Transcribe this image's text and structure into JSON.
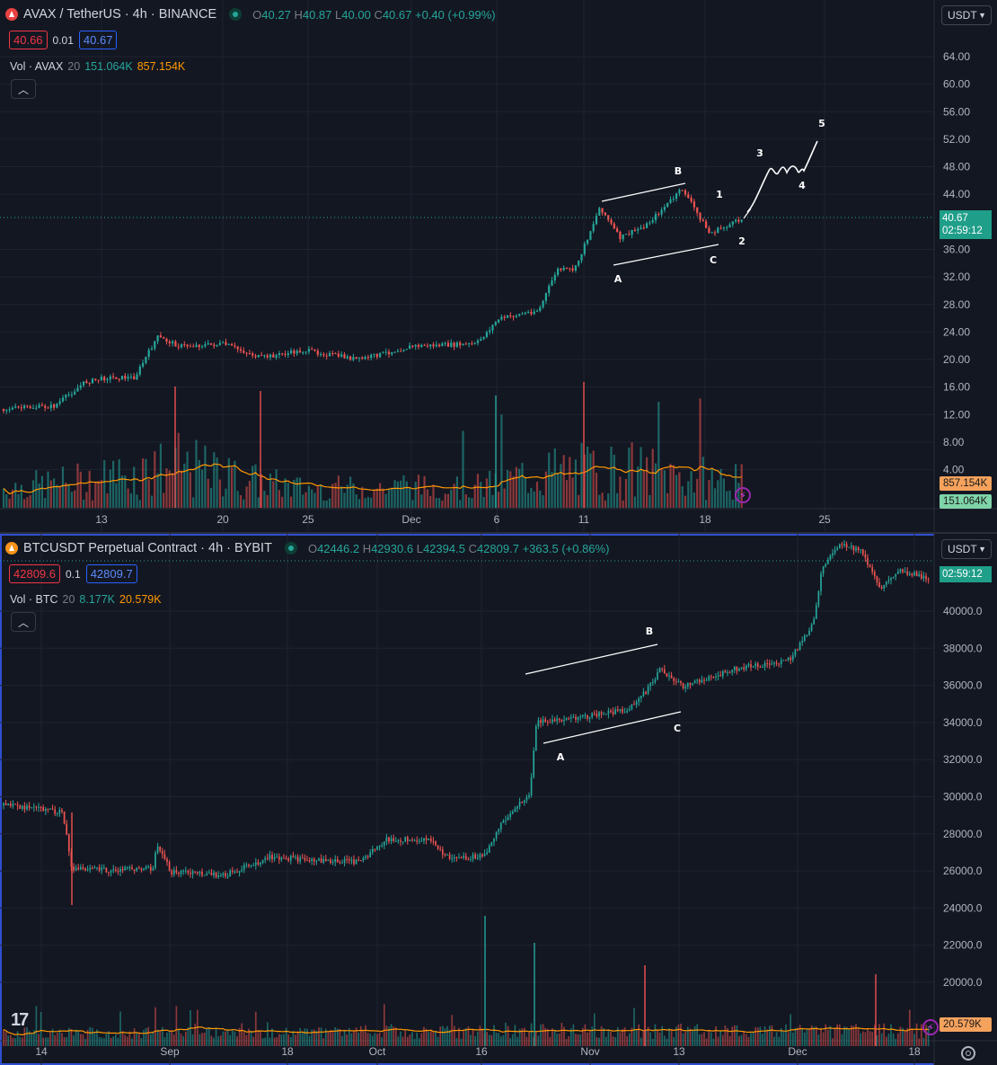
{
  "top": {
    "symbol": "AVAX / TetherUS · 4h · BINANCE",
    "ohlc": {
      "o_label": "O",
      "o": "40.27",
      "h_label": "H",
      "h": "40.87",
      "l_label": "L",
      "l": "40.00",
      "c_label": "C",
      "c": "40.67",
      "change": "+0.40 (+0.99%)"
    },
    "bid": "40.66",
    "spread": "0.01",
    "ask": "40.67",
    "volume": {
      "label": "Vol · AVAX",
      "period": "20",
      "value1": "151.064K",
      "value2": "857.154K"
    },
    "currency": "USDT",
    "price_tag": "40.67",
    "countdown": "02:59:12",
    "vol_ma_tag": "857.154K",
    "vol_tag": "151.064K",
    "price_axis": [
      "64.00",
      "60.00",
      "56.00",
      "52.00",
      "48.00",
      "44.00",
      "36.00",
      "32.00",
      "28.00",
      "24.00",
      "20.00",
      "16.00",
      "12.00",
      "8.00",
      "4.00"
    ],
    "time_axis": [
      "13",
      "20",
      "25",
      "Dec",
      "6",
      "11",
      "18",
      "25"
    ],
    "wave_labels": [
      "A",
      "B",
      "C",
      "1",
      "2",
      "3",
      "4",
      "5"
    ],
    "colors": {
      "up": "#26a69a",
      "down": "#ef5350",
      "ma": "#ff9800"
    },
    "chart_data": {
      "type": "candlestick",
      "approx_close": [
        {
          "x": "13",
          "y": 16.5
        },
        {
          "x": "20",
          "y": 23.0
        },
        {
          "x": "25",
          "y": 21.5
        },
        {
          "x": "Dec",
          "y": 21.0
        },
        {
          "x": "6",
          "y": 26.5
        },
        {
          "x": "11",
          "y": 37.0
        },
        {
          "x": "18",
          "y": 38.0
        }
      ],
      "last_price": 40.67,
      "volume_ma_period": 20
    }
  },
  "bottom": {
    "symbol": "BTCUSDT Perpetual Contract · 4h · BYBIT",
    "ohlc": {
      "o_label": "O",
      "o": "42446.2",
      "h_label": "H",
      "h": "42930.6",
      "l_label": "L",
      "l": "42394.5",
      "c_label": "C",
      "c": "42809.7",
      "change": "+363.5 (+0.86%)"
    },
    "bid": "42809.6",
    "spread": "0.1",
    "ask": "42809.7",
    "volume": {
      "label": "Vol · BTC",
      "period": "20",
      "value1": "8.177K",
      "value2": "20.579K"
    },
    "currency": "USDT",
    "countdown": "02:59:12",
    "vol_ma_tag": "20.579K",
    "price_axis": [
      "40000.0",
      "38000.0",
      "36000.0",
      "34000.0",
      "32000.0",
      "30000.0",
      "28000.0",
      "26000.0",
      "24000.0",
      "22000.0",
      "20000.0"
    ],
    "time_axis": [
      "14",
      "Sep",
      "18",
      "Oct",
      "16",
      "Nov",
      "13",
      "Dec",
      "18"
    ],
    "wave_labels": [
      "A",
      "B",
      "C"
    ],
    "logo": "17",
    "chart_data": {
      "type": "candlestick",
      "approx_close": [
        {
          "x": "14",
          "y": 29000
        },
        {
          "x": "Sep",
          "y": 25800
        },
        {
          "x": "18",
          "y": 26500
        },
        {
          "x": "Oct",
          "y": 27500
        },
        {
          "x": "16",
          "y": 28500
        },
        {
          "x": "Nov",
          "y": 34800
        },
        {
          "x": "13",
          "y": 36500
        },
        {
          "x": "Dec",
          "y": 39000
        },
        {
          "x": "18",
          "y": 42500
        }
      ],
      "last_price": 42809.7,
      "volume_ma_period": 20
    }
  }
}
